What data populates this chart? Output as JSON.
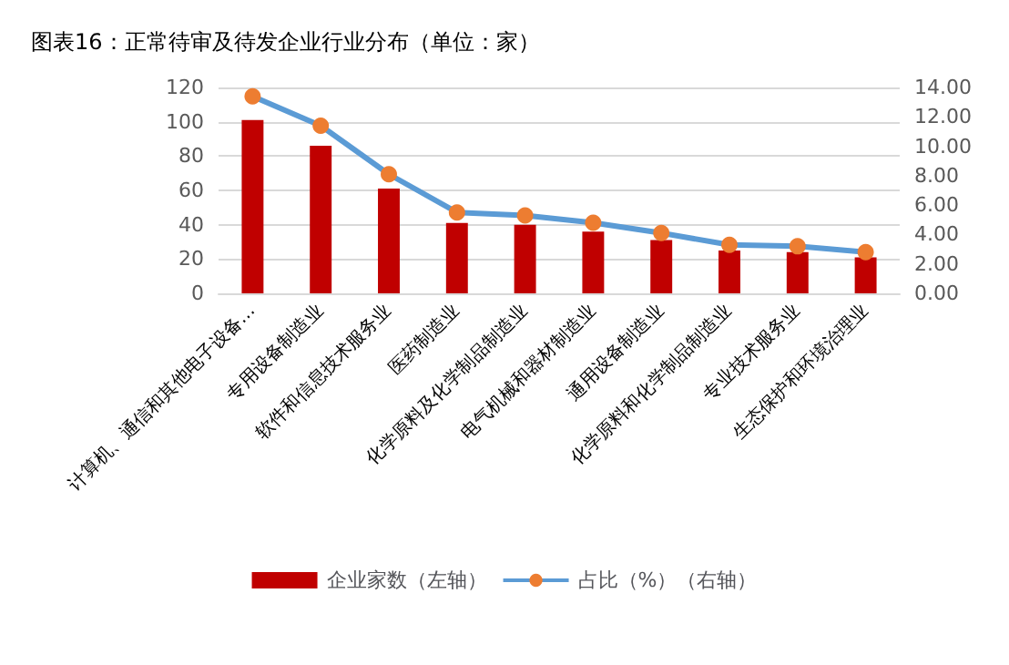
{
  "chart_data": {
    "type": "bar",
    "title": "图表16：正常待审及待发企业行业分布（单位：家）",
    "categories": [
      "计算机、通信和其他电子设备…",
      "专用设备制造业",
      "软件和信息技术服务业",
      "医药制造业",
      "化学原料及化学制品制造业",
      "电气机械和器材制造业",
      "通用设备制造业",
      "化学原料和化学制品制造业",
      "专业技术服务业",
      "生态保护和环境治理业"
    ],
    "series": [
      {
        "name": "企业家数（左轴）",
        "color": "#c00000",
        "values": [
          101,
          86,
          61,
          41,
          40,
          36,
          31,
          25,
          24,
          21
        ]
      },
      {
        "name": "占比（%）（右轴）",
        "type": "line",
        "axis": "y2",
        "color": "#5b9bd5",
        "marker": "circle",
        "values": [
          13.4,
          11.4,
          8.1,
          5.5,
          5.3,
          4.8,
          4.1,
          3.3,
          3.2,
          2.8
        ]
      }
    ],
    "ylim": [
      0,
      120
    ],
    "yticks": [
      0,
      20,
      40,
      60,
      80,
      100,
      120
    ],
    "y2lim": [
      0,
      14
    ],
    "y2ticks": [
      {
        "value": 0,
        "label": "0.00"
      },
      {
        "value": 2,
        "label": "2.00"
      },
      {
        "value": 4,
        "label": "4.00"
      },
      {
        "value": 6,
        "label": "6.00"
      },
      {
        "value": 8,
        "label": "8.00"
      },
      {
        "value": 10,
        "label": "10.00"
      },
      {
        "value": 12,
        "label": "12.00"
      },
      {
        "value": 14,
        "label": "14.00"
      }
    ],
    "grid": "y",
    "legend": "bottom"
  }
}
